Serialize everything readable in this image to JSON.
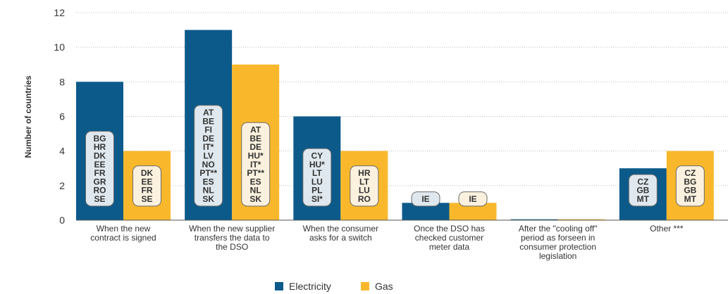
{
  "chart_data": {
    "type": "bar",
    "ylabel": "Number of countries",
    "ylim": [
      0,
      12
    ],
    "yticks": [
      "0",
      "2",
      "4",
      "6",
      "8",
      "10",
      "12"
    ],
    "grid": true,
    "legend_position": "bottom-center",
    "categories": [
      [
        "When the new",
        "contract is signed"
      ],
      [
        "When the new supplier",
        "transfers the data to",
        "the DSO"
      ],
      [
        "When the consumer",
        "asks for a switch"
      ],
      [
        "Once the DSO has",
        "checked customer",
        "meter data"
      ],
      [
        "After the \"cooling off\"",
        "period as forseen in",
        "consumer protection",
        "legislation"
      ],
      [
        "Other ***"
      ]
    ],
    "series": [
      {
        "name": "Electricity",
        "color": "#0c5a8a",
        "box_fill": "#dfe8ee",
        "values": [
          8,
          11,
          6,
          1,
          0.05,
          3
        ],
        "box_labels": [
          [
            "BG",
            "HR",
            "DK",
            "EE",
            "FR",
            "GR",
            "RO",
            "SE"
          ],
          [
            "AT",
            "BE",
            "FI",
            "DE",
            "IT*",
            "LV",
            "NO",
            "PT**",
            "ES",
            "NL",
            "SK"
          ],
          [
            "CY",
            "HU*",
            "LT",
            "LU",
            "PL",
            "SI*"
          ],
          [
            "IE"
          ],
          [],
          [
            "CZ",
            "GB",
            "MT"
          ]
        ]
      },
      {
        "name": "Gas",
        "color": "#f9b82b",
        "box_fill": "#fbf1de",
        "values": [
          4,
          9,
          4,
          1,
          0.05,
          4
        ],
        "box_labels": [
          [
            "DK",
            "EE",
            "FR",
            "SE"
          ],
          [
            "AT",
            "BE",
            "DE",
            "HU*",
            "IT*",
            "PT**",
            "ES",
            "NL",
            "SK"
          ],
          [
            "HR",
            "LT",
            "LU",
            "RO"
          ],
          [
            "IE"
          ],
          [],
          [
            "CZ",
            "BG",
            "GB",
            "MT"
          ]
        ]
      }
    ]
  }
}
